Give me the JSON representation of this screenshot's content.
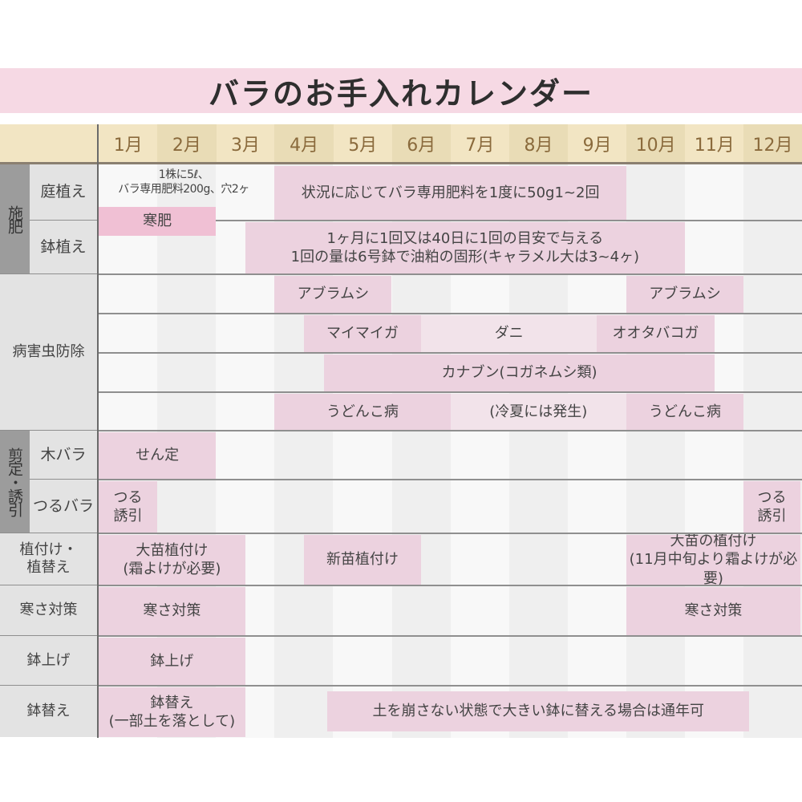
{
  "title": "バラのお手入れカレンダー",
  "months": [
    "1月",
    "2月",
    "3月",
    "4月",
    "5月",
    "6月",
    "7月",
    "8月",
    "9月",
    "10月",
    "11月",
    "12月"
  ],
  "colors": {
    "bar": "#ecd2df",
    "bar_light": "#f2e3ea",
    "title_bg": "#f6d9e4",
    "header_bg": "#f2e5c3"
  },
  "groups": [
    {
      "label": "施肥",
      "style": "side",
      "rows": [
        "庭植え",
        "鉢植え"
      ]
    },
    {
      "label": "病害虫防除",
      "style": "full",
      "rows": [
        "",
        "",
        "",
        ""
      ]
    },
    {
      "label": "剪定・誘引",
      "style": "side",
      "rows": [
        "木バラ",
        "つるバラ"
      ]
    },
    {
      "label": "植付け・\n植替え",
      "style": "full",
      "rows": [
        ""
      ]
    },
    {
      "label": "寒さ対策",
      "style": "full",
      "rows": [
        ""
      ]
    },
    {
      "label": "鉢上げ",
      "style": "full",
      "rows": [
        ""
      ]
    },
    {
      "label": "鉢替え",
      "style": "full",
      "rows": [
        ""
      ]
    }
  ],
  "tasks": [
    {
      "row": 0,
      "start_month": 1,
      "end_month": 3.9,
      "text": "1株に5ℓ、\nバラ専用肥料200g、穴2ヶ",
      "tone": "none"
    },
    {
      "row": 0,
      "start_month": 4,
      "end_month": 10,
      "text": "状況に応じてバラ専用肥料を1度に50g1~2回",
      "tone": "pink"
    },
    {
      "row": 0,
      "start_month": 1,
      "end_month": 3,
      "text": "寒肥",
      "tone": "strong"
    },
    {
      "row": 1,
      "start_month": 3.5,
      "end_month": 11,
      "text": "1ヶ月に1回又は40日に1回の目安で与える\n1回の量は6号鉢で油粕の固形(キャラメル大は3~4ヶ)",
      "tone": "pink"
    },
    {
      "row": 2,
      "start_month": 4,
      "end_month": 6,
      "text": "アブラムシ",
      "tone": "pink"
    },
    {
      "row": 2,
      "start_month": 10,
      "end_month": 12,
      "text": "アブラムシ",
      "tone": "pink"
    },
    {
      "row": 3,
      "start_month": 4.5,
      "end_month": 6.5,
      "text": "マイマイガ",
      "tone": "pink"
    },
    {
      "row": 3,
      "start_month": 6.5,
      "end_month": 9.5,
      "text": "ダニ",
      "tone": "light"
    },
    {
      "row": 3,
      "start_month": 9.5,
      "end_month": 11.5,
      "text": "オオタバコガ",
      "tone": "pink"
    },
    {
      "row": 4,
      "start_month": 4.85,
      "end_month": 11.5,
      "text": "カナブン(コガネムシ類)",
      "tone": "pink"
    },
    {
      "row": 5,
      "start_month": 4,
      "end_month": 7,
      "text": "うどんこ病",
      "tone": "pink"
    },
    {
      "row": 5,
      "start_month": 7,
      "end_month": 10,
      "text": "(冷夏には発生)",
      "tone": "light"
    },
    {
      "row": 5,
      "start_month": 10,
      "end_month": 12,
      "text": "うどんこ病",
      "tone": "pink"
    },
    {
      "row": 6,
      "start_month": 1,
      "end_month": 3,
      "text": "せん定",
      "tone": "pink"
    },
    {
      "row": 7,
      "start_month": 1,
      "end_month": 2,
      "text": "つる\n誘引",
      "tone": "pink"
    },
    {
      "row": 7,
      "start_month": 12,
      "end_month": 13,
      "text": "つる\n誘引",
      "tone": "pink"
    },
    {
      "row": 8,
      "start_month": 1,
      "end_month": 3.5,
      "text": "大苗植付け\n(霜よけが必要)",
      "tone": "pink"
    },
    {
      "row": 8,
      "start_month": 4.5,
      "end_month": 6.5,
      "text": "新苗植付け",
      "tone": "pink"
    },
    {
      "row": 8,
      "start_month": 10,
      "end_month": 13,
      "text": "大苗の植付け\n(11月中旬より霜よけが必要)",
      "tone": "pink"
    },
    {
      "row": 9,
      "start_month": 1,
      "end_month": 3.5,
      "text": "寒さ対策",
      "tone": "pink"
    },
    {
      "row": 9,
      "start_month": 10,
      "end_month": 13,
      "text": "寒さ対策",
      "tone": "pink"
    },
    {
      "row": 10,
      "start_month": 1,
      "end_month": 3.5,
      "text": "鉢上げ",
      "tone": "pink"
    },
    {
      "row": 11,
      "start_month": 1,
      "end_month": 3.5,
      "text": "鉢替え\n(一部土を落として)",
      "tone": "pink"
    },
    {
      "row": 11,
      "start_month": 4.9,
      "end_month": 12.1,
      "text": "土を崩さない状態で大きい鉢に替える場合は通年可",
      "tone": "pink"
    }
  ]
}
